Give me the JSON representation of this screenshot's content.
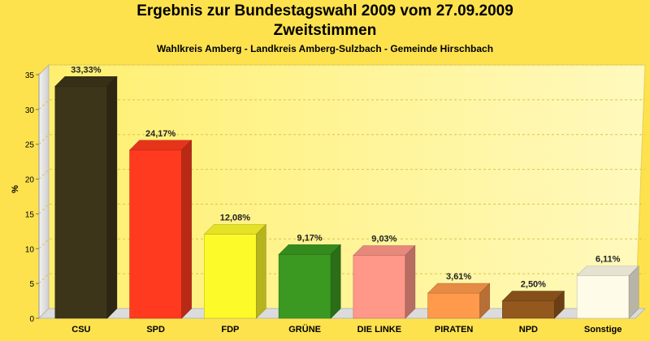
{
  "chart_data": {
    "type": "bar",
    "title_line1": "Ergebnis zur Bundestagswahl 2009 vom 27.09.2009",
    "title_line2": "Zweitstimmen",
    "subtitle": "Wahlkreis Amberg - Landkreis Amberg-Sulzbach - Gemeinde Hirschbach",
    "ylabel": "%",
    "xlabel": "",
    "ylim": [
      0,
      35
    ],
    "yticks": [
      0,
      5,
      10,
      15,
      20,
      25,
      30,
      35
    ],
    "grid": true,
    "categories": [
      "CSU",
      "SPD",
      "FDP",
      "GRÜNE",
      "DIE LINKE",
      "PIRATEN",
      "NPD",
      "Sonstige"
    ],
    "values": [
      33.33,
      24.17,
      12.08,
      9.17,
      9.03,
      3.61,
      2.5,
      6.11
    ],
    "value_labels": [
      "33,33%",
      "24,17%",
      "12,08%",
      "9,17%",
      "9,03%",
      "3,61%",
      "2,50%",
      "6,11%"
    ],
    "colors": [
      "#3d351a",
      "#ff3a1e",
      "#fdfa2a",
      "#3b9921",
      "#ff9888",
      "#ff9a4c",
      "#93581e",
      "#fffbe9"
    ]
  }
}
